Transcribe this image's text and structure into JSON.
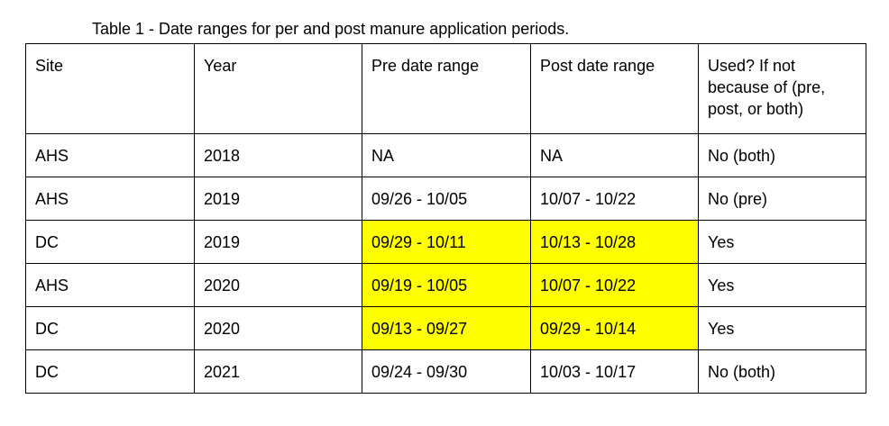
{
  "caption": "Table 1 - Date ranges for per and post manure application periods.",
  "colors": {
    "highlight": "#ffff00",
    "border": "#000000",
    "text": "#000000"
  },
  "table": {
    "headers": [
      "Site",
      "Year",
      "Pre date range",
      "Post date range",
      "Used? If not because of (pre, post, or both)"
    ],
    "rows": [
      {
        "site": "AHS",
        "year": "2018",
        "pre": "NA",
        "post": "NA",
        "used": "No (both)",
        "highlighted": false
      },
      {
        "site": "AHS",
        "year": "2019",
        "pre": "09/26 - 10/05",
        "post": "10/07 - 10/22",
        "used": "No (pre)",
        "highlighted": false
      },
      {
        "site": "DC",
        "year": "2019",
        "pre": "09/29 - 10/11",
        "post": "10/13 - 10/28",
        "used": "Yes",
        "highlighted": true
      },
      {
        "site": "AHS",
        "year": "2020",
        "pre": "09/19 - 10/05",
        "post": "10/07 - 10/22",
        "used": "Yes",
        "highlighted": true
      },
      {
        "site": "DC",
        "year": "2020",
        "pre": "09/13 - 09/27",
        "post": "09/29 - 10/14",
        "used": "Yes",
        "highlighted": true
      },
      {
        "site": "DC",
        "year": "2021",
        "pre": "09/24 - 09/30",
        "post": "10/03 - 10/17",
        "used": "No (both)",
        "highlighted": false
      }
    ]
  }
}
